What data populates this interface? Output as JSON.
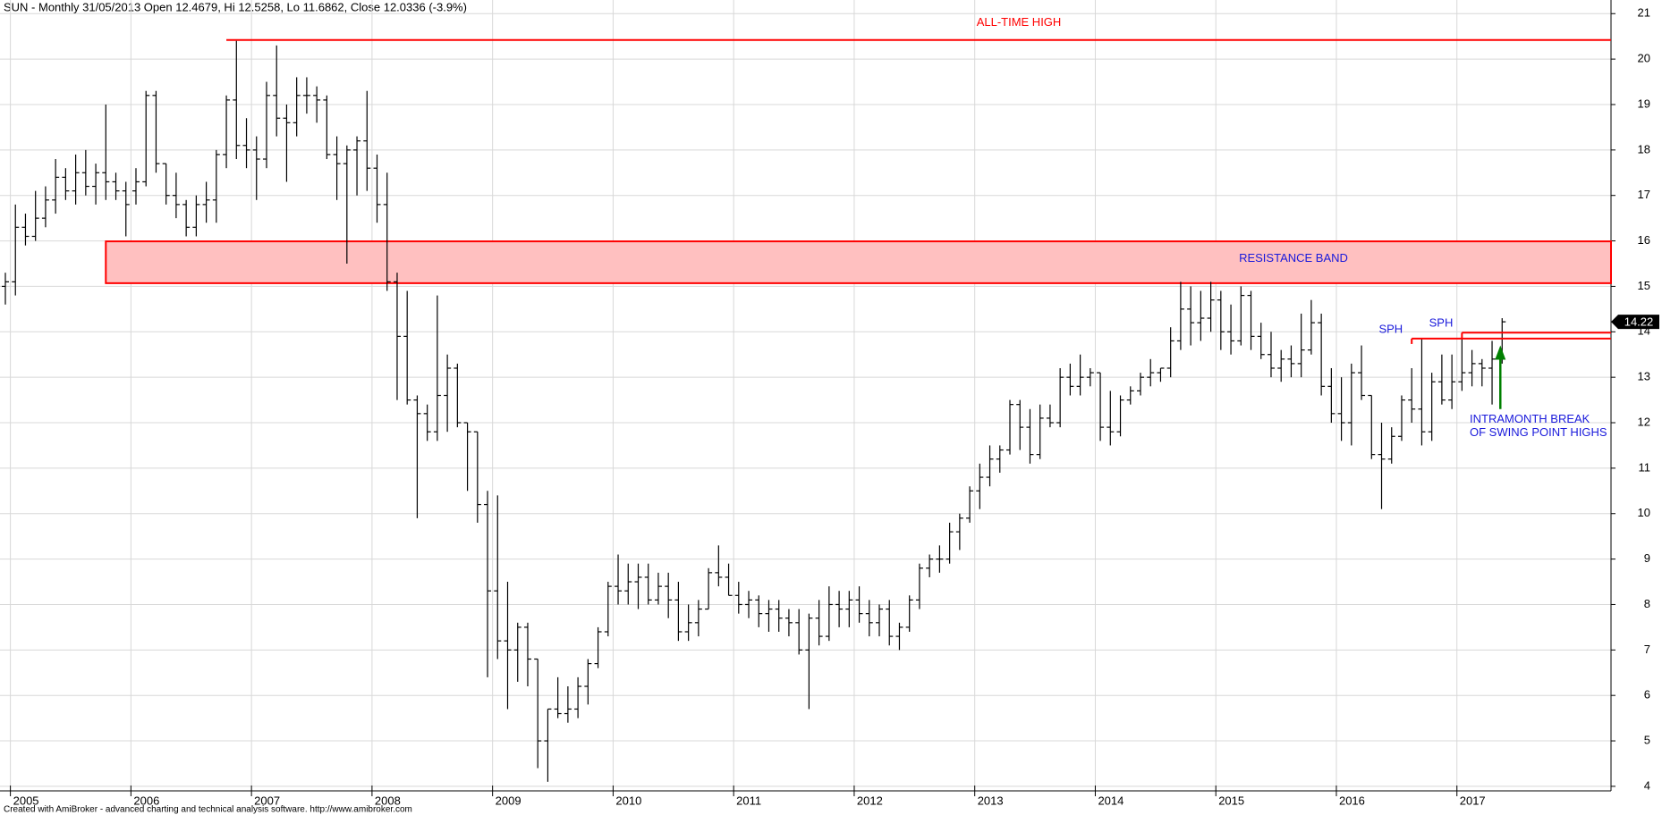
{
  "chart_data": {
    "type": "ohlc",
    "title": "SUN - Monthly 31/05/2013 Open 12.4679, Hi 12.5258, Lo 11.6862, Close 12.0336 (-3.9%)",
    "footer": "Created with AmiBroker - advanced charting and technical analysis software. http://www.amibroker.com",
    "color": "#000000",
    "grid": true,
    "ylim": [
      3.9,
      21.3
    ],
    "yticks": [
      4,
      5,
      6,
      7,
      8,
      9,
      10,
      11,
      12,
      13,
      14,
      15,
      16,
      17,
      18,
      19,
      20,
      21
    ],
    "categories": [
      null,
      "2005",
      null,
      null,
      null,
      null,
      null,
      null,
      null,
      null,
      null,
      null,
      null,
      "2006",
      null,
      null,
      null,
      null,
      null,
      null,
      null,
      null,
      null,
      null,
      null,
      "2007",
      null,
      null,
      null,
      null,
      null,
      null,
      null,
      null,
      null,
      null,
      null,
      "2008",
      null,
      null,
      null,
      null,
      null,
      null,
      null,
      null,
      null,
      null,
      null,
      "2009",
      null,
      null,
      null,
      null,
      null,
      null,
      null,
      null,
      null,
      null,
      null,
      "2010",
      null,
      null,
      null,
      null,
      null,
      null,
      null,
      null,
      null,
      null,
      null,
      "2011",
      null,
      null,
      null,
      null,
      null,
      null,
      null,
      null,
      null,
      null,
      null,
      "2012",
      null,
      null,
      null,
      null,
      null,
      null,
      null,
      null,
      null,
      null,
      null,
      "2013",
      null,
      null,
      null,
      null,
      null,
      null,
      null,
      null,
      null,
      null,
      null,
      "2014",
      null,
      null,
      null,
      null,
      null,
      null,
      null,
      null,
      null,
      null,
      null,
      "2015",
      null,
      null,
      null,
      null,
      null,
      null,
      null,
      null,
      null,
      null,
      null,
      "2016",
      null,
      null,
      null,
      null,
      null,
      null,
      null,
      null,
      null,
      null,
      null,
      "2017",
      null,
      null,
      null,
      null
    ],
    "open": [
      15.0,
      15.1,
      16.3,
      16.1,
      16.5,
      16.9,
      17.4,
      17.1,
      17.5,
      17.2,
      17.5,
      17.3,
      17.1,
      17.1,
      17.3,
      19.2,
      17.7,
      17.0,
      16.8,
      16.3,
      16.8,
      16.9,
      17.9,
      19.1,
      18.1,
      18.0,
      17.8,
      19.2,
      18.7,
      18.6,
      19.2,
      19.2,
      19.1,
      17.9,
      17.7,
      18.0,
      18.2,
      17.6,
      16.8,
      15.1,
      13.9,
      12.5,
      12.2,
      11.8,
      12.6,
      13.2,
      12.0,
      11.8,
      10.2,
      8.3,
      7.2,
      7.0,
      7.5,
      6.8,
      5.0,
      5.7,
      5.6,
      5.7,
      6.2,
      6.7,
      7.4,
      8.4,
      8.3,
      8.5,
      8.6,
      8.1,
      8.4,
      8.1,
      7.4,
      7.6,
      7.9,
      8.7,
      8.6,
      8.2,
      8.0,
      8.1,
      7.8,
      7.9,
      7.7,
      7.6,
      7.0,
      7.7,
      7.3,
      8.0,
      7.9,
      8.1,
      7.8,
      7.6,
      7.9,
      7.3,
      7.5,
      8.1,
      8.8,
      9.0,
      9.0,
      9.6,
      9.9,
      10.5,
      10.8,
      11.2,
      11.4,
      12.4,
      11.9,
      11.3,
      12.1,
      12.0,
      13.0,
      12.8,
      13.0,
      13.1,
      11.9,
      11.8,
      12.5,
      12.7,
      13.0,
      13.1,
      13.2,
      13.8,
      14.5,
      14.2,
      14.3,
      14.7,
      14.0,
      13.8,
      14.8,
      13.9,
      13.5,
      13.2,
      13.4,
      13.3,
      13.6,
      14.2,
      12.8,
      12.2,
      12.0,
      13.1,
      12.6,
      11.3,
      11.2,
      11.7,
      12.5,
      12.3,
      11.8,
      12.9,
      12.5,
      12.9,
      13.1,
      13.3,
      13.2,
      13.4
    ],
    "high": [
      15.3,
      16.8,
      16.6,
      17.1,
      17.2,
      17.8,
      17.6,
      17.9,
      18.0,
      17.7,
      19.0,
      17.5,
      17.3,
      17.6,
      19.3,
      19.3,
      17.7,
      17.5,
      16.9,
      17.0,
      17.3,
      18.0,
      19.2,
      20.4,
      18.7,
      18.3,
      19.5,
      20.3,
      19.0,
      19.6,
      19.6,
      19.4,
      19.2,
      18.3,
      18.1,
      18.3,
      19.3,
      17.9,
      17.5,
      15.3,
      14.9,
      12.6,
      12.4,
      14.8,
      13.5,
      13.3,
      12.0,
      11.8,
      10.5,
      10.4,
      8.5,
      7.6,
      7.6,
      6.8,
      5.7,
      6.4,
      6.2,
      6.4,
      6.8,
      7.5,
      8.5,
      9.1,
      8.9,
      8.9,
      8.9,
      8.7,
      8.7,
      8.5,
      8.0,
      8.1,
      8.8,
      9.3,
      8.9,
      8.5,
      8.3,
      8.2,
      8.1,
      8.1,
      7.9,
      7.9,
      7.8,
      8.1,
      8.4,
      8.3,
      8.3,
      8.4,
      8.1,
      8.0,
      8.1,
      7.6,
      8.2,
      8.9,
      9.1,
      9.3,
      9.8,
      10.0,
      10.6,
      11.1,
      11.5,
      11.5,
      12.5,
      12.5,
      12.3,
      12.4,
      12.4,
      13.2,
      13.3,
      13.5,
      13.2,
      13.1,
      12.7,
      12.6,
      12.8,
      13.1,
      13.4,
      13.2,
      14.1,
      15.1,
      15.0,
      14.9,
      15.1,
      14.9,
      14.6,
      15.0,
      14.9,
      14.2,
      14.0,
      13.6,
      13.7,
      14.4,
      14.7,
      14.4,
      13.2,
      13.0,
      13.3,
      13.7,
      12.6,
      12.0,
      11.9,
      12.6,
      13.2,
      13.85,
      13.1,
      13.5,
      13.5,
      13.98,
      13.6,
      13.4,
      13.8,
      14.3
    ],
    "low": [
      14.6,
      14.8,
      15.9,
      16.0,
      16.3,
      16.6,
      16.9,
      16.8,
      17.0,
      16.8,
      16.9,
      16.9,
      16.1,
      16.8,
      17.2,
      17.5,
      16.8,
      16.5,
      16.1,
      16.1,
      16.4,
      16.4,
      17.6,
      17.8,
      17.6,
      16.9,
      17.6,
      18.3,
      17.3,
      18.3,
      18.8,
      18.6,
      17.8,
      16.9,
      15.5,
      17.0,
      17.1,
      16.4,
      14.9,
      12.5,
      12.4,
      9.9,
      11.6,
      11.6,
      11.8,
      11.9,
      10.5,
      9.8,
      6.4,
      6.8,
      5.7,
      6.3,
      6.2,
      4.4,
      4.1,
      5.5,
      5.4,
      5.5,
      5.8,
      6.6,
      7.3,
      8.0,
      8.0,
      7.9,
      8.0,
      8.0,
      7.7,
      7.2,
      7.2,
      7.3,
      7.9,
      8.4,
      8.2,
      7.8,
      7.7,
      7.5,
      7.4,
      7.4,
      7.3,
      6.9,
      5.7,
      7.1,
      7.2,
      7.5,
      7.5,
      7.6,
      7.3,
      7.3,
      7.1,
      7.0,
      7.4,
      7.9,
      8.6,
      8.7,
      8.9,
      9.2,
      9.8,
      10.1,
      10.6,
      10.9,
      11.3,
      11.4,
      11.1,
      11.2,
      11.9,
      11.9,
      12.6,
      12.6,
      12.8,
      11.6,
      11.5,
      11.7,
      12.4,
      12.6,
      12.8,
      12.9,
      13.0,
      13.6,
      13.7,
      13.8,
      14.0,
      13.6,
      13.5,
      13.7,
      13.6,
      13.4,
      13.0,
      12.9,
      13.0,
      13.0,
      13.5,
      12.6,
      12.0,
      11.6,
      11.5,
      12.5,
      11.2,
      10.1,
      11.1,
      11.6,
      12.0,
      11.5,
      11.6,
      12.4,
      12.3,
      12.7,
      12.8,
      12.8,
      12.4,
      13.3
    ],
    "close": [
      15.1,
      16.3,
      16.1,
      16.5,
      16.9,
      17.4,
      17.1,
      17.5,
      17.2,
      17.5,
      17.3,
      17.1,
      16.8,
      17.3,
      19.2,
      17.7,
      17.0,
      16.8,
      16.3,
      16.8,
      16.9,
      17.9,
      19.1,
      18.1,
      18.0,
      17.8,
      19.2,
      18.7,
      18.6,
      19.2,
      19.2,
      19.1,
      17.9,
      17.7,
      18.0,
      18.2,
      17.6,
      16.8,
      15.1,
      13.9,
      12.5,
      12.2,
      11.8,
      12.6,
      13.2,
      12.0,
      11.8,
      10.2,
      8.3,
      7.2,
      7.0,
      7.5,
      6.8,
      5.0,
      5.7,
      5.6,
      5.7,
      6.2,
      6.7,
      7.4,
      8.4,
      8.3,
      8.5,
      8.6,
      8.1,
      8.4,
      8.1,
      7.4,
      7.6,
      7.9,
      8.7,
      8.6,
      8.2,
      8.0,
      8.1,
      7.8,
      7.9,
      7.7,
      7.6,
      7.0,
      7.7,
      7.3,
      8.0,
      7.9,
      8.1,
      7.8,
      7.6,
      7.9,
      7.3,
      7.5,
      8.1,
      8.8,
      9.0,
      9.0,
      9.6,
      9.9,
      10.5,
      10.8,
      11.2,
      11.4,
      12.4,
      11.9,
      11.3,
      12.1,
      12.0,
      13.0,
      12.8,
      13.0,
      13.1,
      11.9,
      11.8,
      12.5,
      12.7,
      13.0,
      13.1,
      13.2,
      13.8,
      14.5,
      14.2,
      14.3,
      14.7,
      14.0,
      13.8,
      14.8,
      13.9,
      13.5,
      13.2,
      13.4,
      13.3,
      13.6,
      14.2,
      12.8,
      12.2,
      12.0,
      13.1,
      12.6,
      11.3,
      11.2,
      11.7,
      12.5,
      12.3,
      11.8,
      12.9,
      12.5,
      12.9,
      13.1,
      13.3,
      13.2,
      13.4,
      14.22
    ],
    "annotation_color": "#ff0000",
    "text_color": "#1a1adb",
    "arrow_color": "#008000",
    "band_fill": "#ffc0c0",
    "all_time_high": {
      "label": "ALL-TIME HIGH",
      "value": 20.42,
      "start": 22
    },
    "resistance_band": {
      "label": "RESISTANCE BAND",
      "low": 15.07,
      "high": 15.99,
      "start": 10
    },
    "swing_highs": [
      {
        "label": "SPH",
        "value": 13.85,
        "start": 140
      },
      {
        "label": "SPH",
        "value": 13.98,
        "start": 145
      }
    ],
    "arrow": {
      "lines": [
        "INTRAMONTH BREAK",
        "OF SWING POINT HIGHS"
      ],
      "from": 12.3,
      "to": 13.7,
      "at": 149
    },
    "last_price": 14.22
  }
}
